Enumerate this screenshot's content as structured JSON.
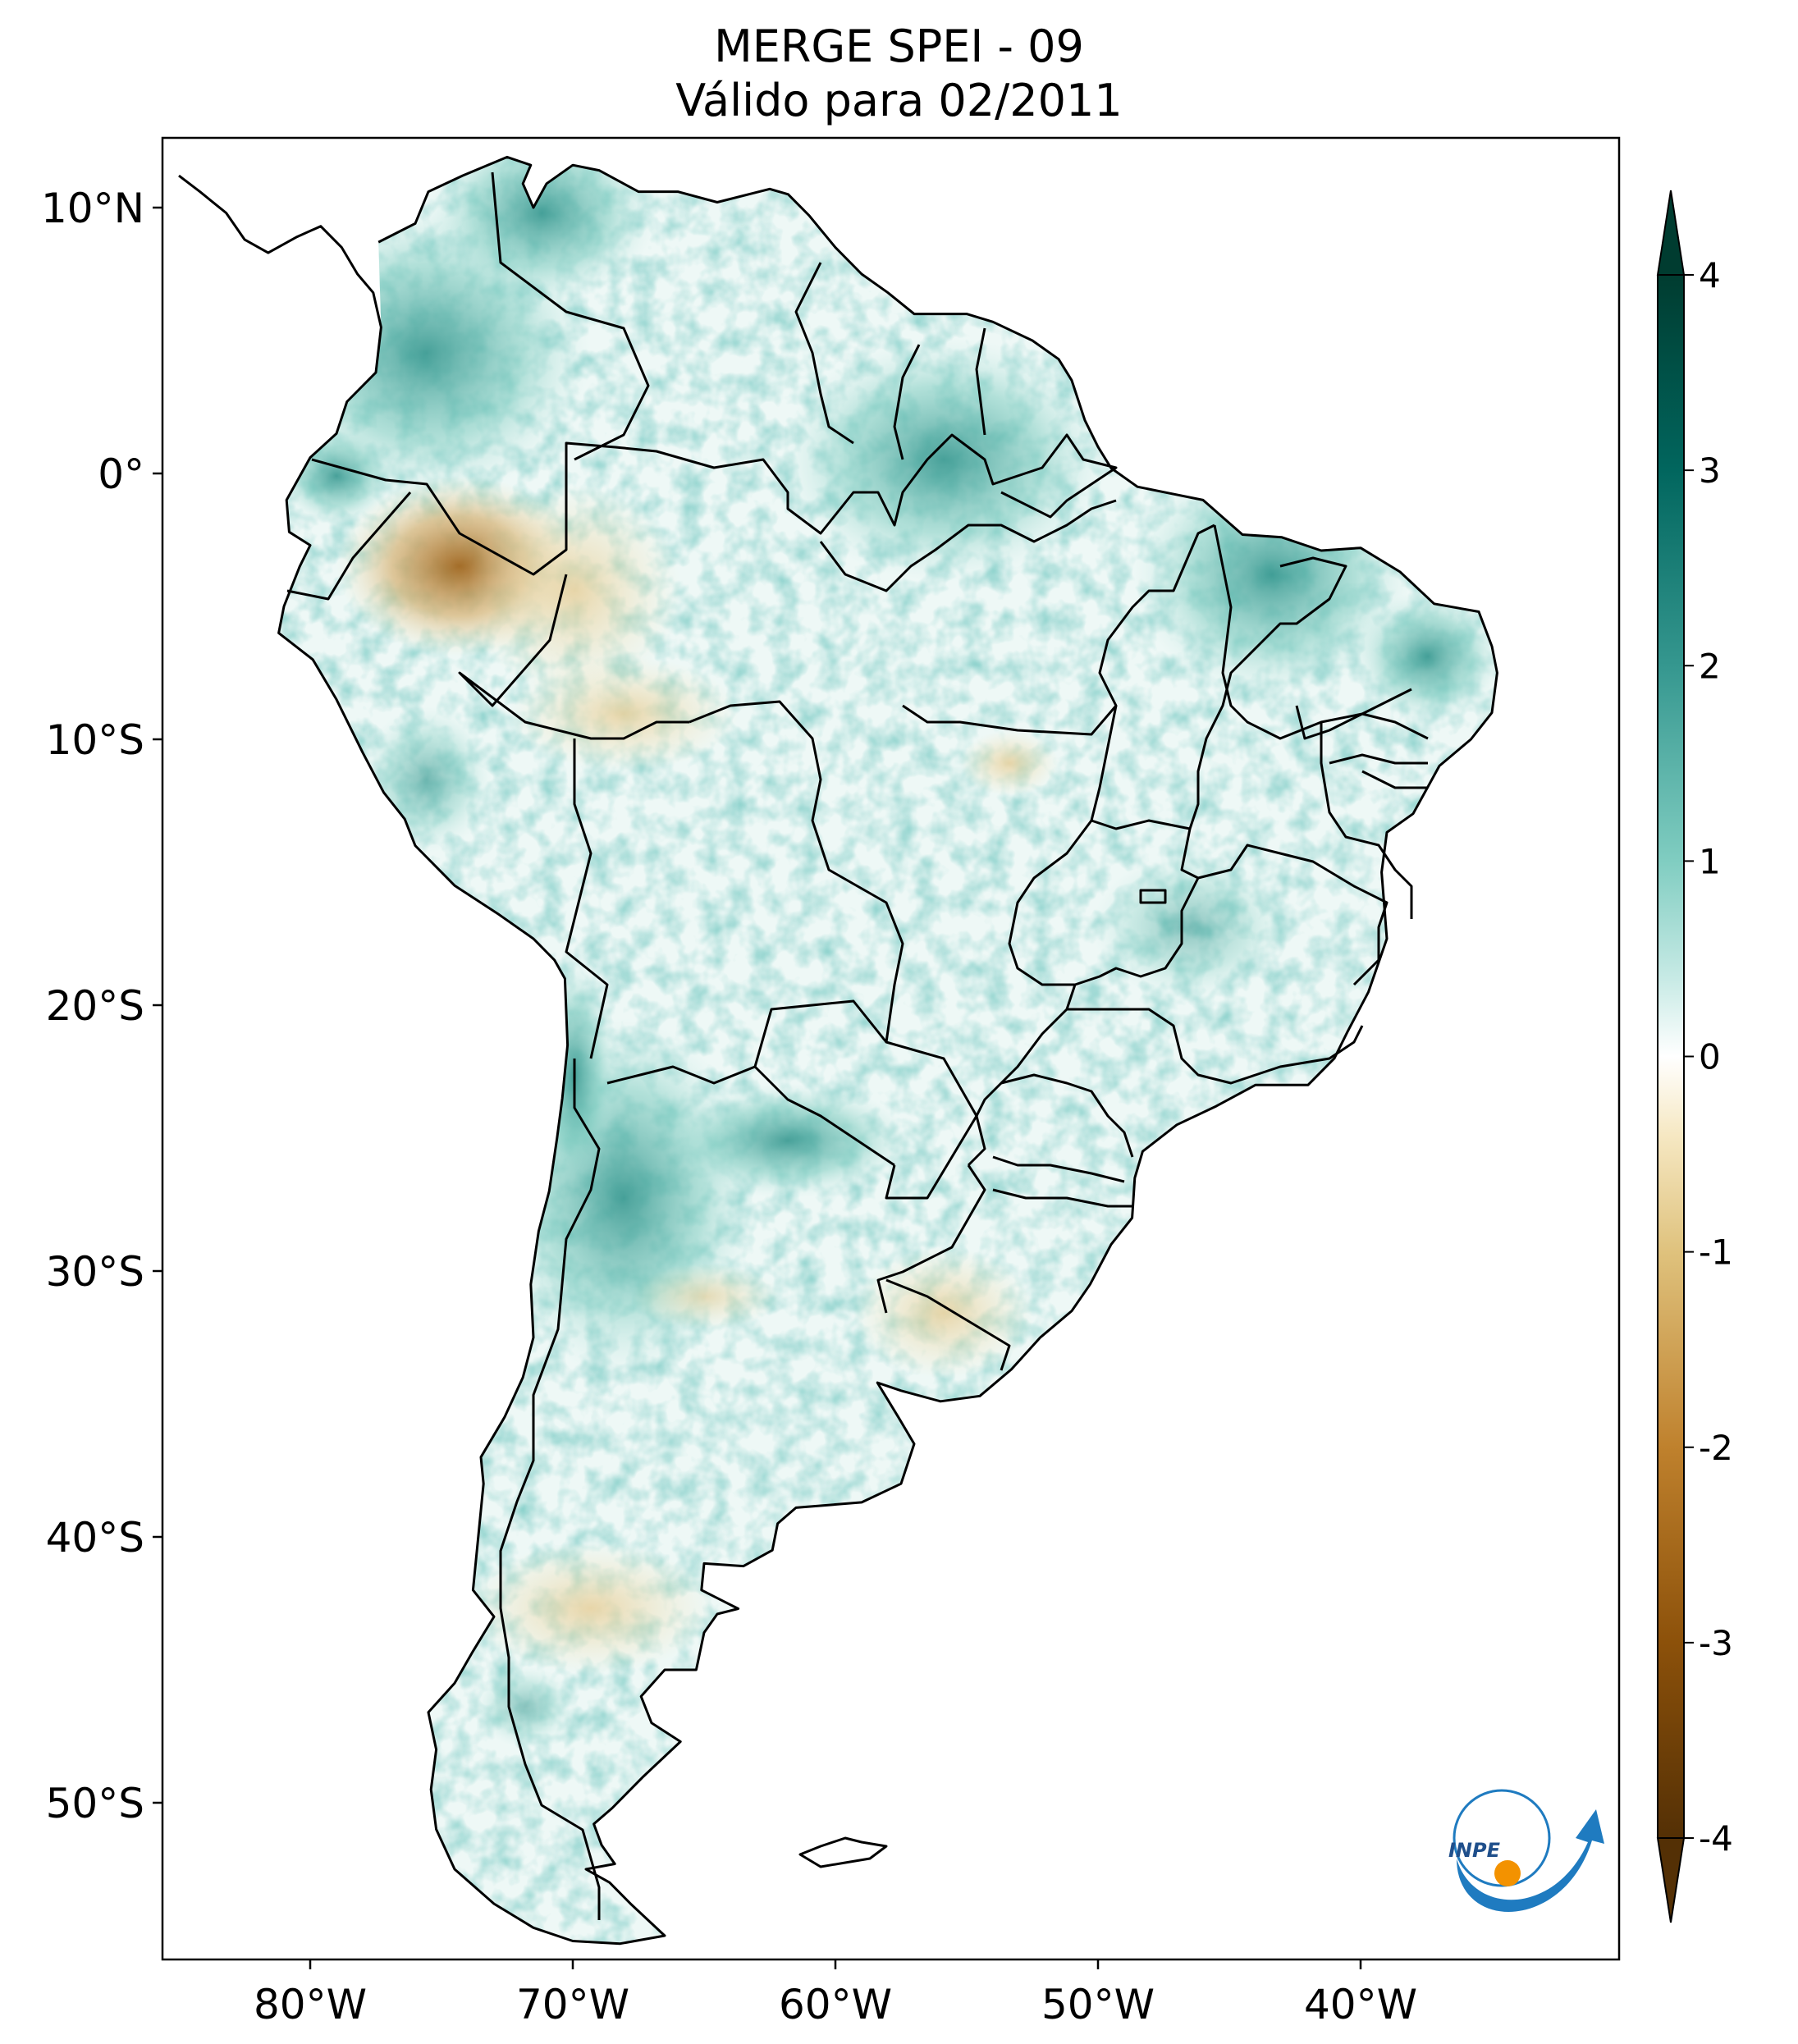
{
  "title": {
    "line1": "MERGE   SPEI - 09",
    "line2": "Válido para 02/2011"
  },
  "map": {
    "region": "South America",
    "lon_range": [
      -85,
      -30
    ],
    "lat_range": [
      -56,
      13
    ],
    "lat_ticks": [
      {
        "value": 10,
        "label": "10°N"
      },
      {
        "value": 0,
        "label": "0°"
      },
      {
        "value": -10,
        "label": "10°S"
      },
      {
        "value": -20,
        "label": "20°S"
      },
      {
        "value": -30,
        "label": "30°S"
      },
      {
        "value": -40,
        "label": "40°S"
      },
      {
        "value": -50,
        "label": "50°S"
      }
    ],
    "lon_ticks": [
      {
        "value": -80,
        "label": "80°W"
      },
      {
        "value": -70,
        "label": "70°W"
      },
      {
        "value": -60,
        "label": "60°W"
      },
      {
        "value": -50,
        "label": "50°W"
      },
      {
        "value": -40,
        "label": "40°W"
      }
    ]
  },
  "colorbar": {
    "min": -4,
    "max": 4,
    "extend": "both",
    "colormap": "BrBG",
    "ticks": [
      {
        "value": 4,
        "label": "4"
      },
      {
        "value": 3,
        "label": "3"
      },
      {
        "value": 2,
        "label": "2"
      },
      {
        "value": 1,
        "label": "1"
      },
      {
        "value": 0,
        "label": "0"
      },
      {
        "value": -1,
        "label": "-1"
      },
      {
        "value": -2,
        "label": "-2"
      },
      {
        "value": -3,
        "label": "-3"
      },
      {
        "value": -4,
        "label": "-4"
      }
    ],
    "colors": {
      "dry_extreme": "#543005",
      "dry": "#bf812d",
      "dry_light": "#f6e8c3",
      "neutral": "#f5f5f5",
      "wet_light": "#c7eae5",
      "wet": "#35978f",
      "wet_extreme": "#003c30"
    }
  },
  "logo": {
    "text": "INPE",
    "colors": {
      "blue": "#1f7bc0",
      "orange": "#f39200"
    }
  }
}
